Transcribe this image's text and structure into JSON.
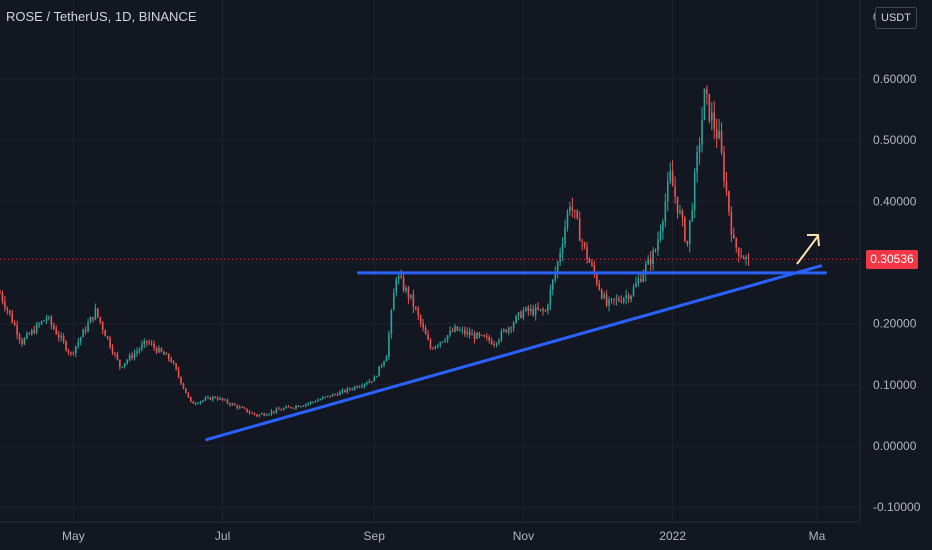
{
  "header": {
    "symbol_title": "ROSE / TetherUS, 1D, BINANCE",
    "currency": "USDT",
    "top_axis_label": "0"
  },
  "colors": {
    "background": "#131722",
    "grid": "#1e222d",
    "up": "#26a69a",
    "down": "#ef5350",
    "trendline": "#2962ff",
    "arrow": "#ffe0b2",
    "price_badge": "#f23645"
  },
  "current_price_label": "0.30536",
  "chart_data": {
    "type": "candlestick",
    "title": "ROSE / TetherUS, 1D, BINANCE",
    "y_axis": {
      "ticks": [
        "0.60000",
        "0.50000",
        "0.40000",
        "0.30000",
        "0.20000",
        "0.10000",
        "0.00000",
        "-0.10000"
      ],
      "tick_values": [
        0.6,
        0.5,
        0.4,
        0.3,
        0.2,
        0.1,
        0.0,
        -0.1
      ],
      "range": [
        -0.11,
        0.7
      ],
      "side": "right"
    },
    "x_axis": {
      "ticks": [
        "May",
        "Jul",
        "Sep",
        "Nov",
        "2022",
        "Ma"
      ]
    },
    "current_price": 0.30536,
    "grid": true,
    "series_path": [
      [
        "2021-04-01",
        0.25
      ],
      [
        "2021-04-10",
        0.17
      ],
      [
        "2021-04-20",
        0.21
      ],
      [
        "2021-04-30",
        0.15
      ],
      [
        "2021-05-10",
        0.22
      ],
      [
        "2021-05-20",
        0.13
      ],
      [
        "2021-05-31",
        0.17
      ],
      [
        "2021-06-10",
        0.14
      ],
      [
        "2021-06-18",
        0.07
      ],
      [
        "2021-06-28",
        0.08
      ],
      [
        "2021-07-15",
        0.05
      ],
      [
        "2021-07-25",
        0.06
      ],
      [
        "2021-08-05",
        0.07
      ],
      [
        "2021-08-20",
        0.09
      ],
      [
        "2021-09-01",
        0.11
      ],
      [
        "2021-09-06",
        0.15
      ],
      [
        "2021-09-10",
        0.28
      ],
      [
        "2021-09-16",
        0.24
      ],
      [
        "2021-09-24",
        0.16
      ],
      [
        "2021-10-04",
        0.19
      ],
      [
        "2021-10-20",
        0.17
      ],
      [
        "2021-11-01",
        0.22
      ],
      [
        "2021-11-10",
        0.22
      ],
      [
        "2021-11-15",
        0.3
      ],
      [
        "2021-11-20",
        0.4
      ],
      [
        "2021-11-26",
        0.32
      ],
      [
        "2021-12-05",
        0.23
      ],
      [
        "2021-12-15",
        0.25
      ],
      [
        "2021-12-25",
        0.32
      ],
      [
        "2021-12-31",
        0.44
      ],
      [
        "2022-01-07",
        0.33
      ],
      [
        "2022-01-14",
        0.57
      ],
      [
        "2022-01-20",
        0.5
      ],
      [
        "2022-01-26",
        0.33
      ],
      [
        "2022-02-01",
        0.3
      ]
    ],
    "annotations": [
      {
        "type": "horizontal_line",
        "value": 0.283,
        "from": "2021-08-25",
        "to": "2022-03-05"
      },
      {
        "type": "trend_line",
        "from": [
          "2021-06-24",
          0.01
        ],
        "to": [
          "2022-03-03",
          0.295
        ]
      },
      {
        "type": "arrow",
        "direction": "up"
      }
    ]
  }
}
